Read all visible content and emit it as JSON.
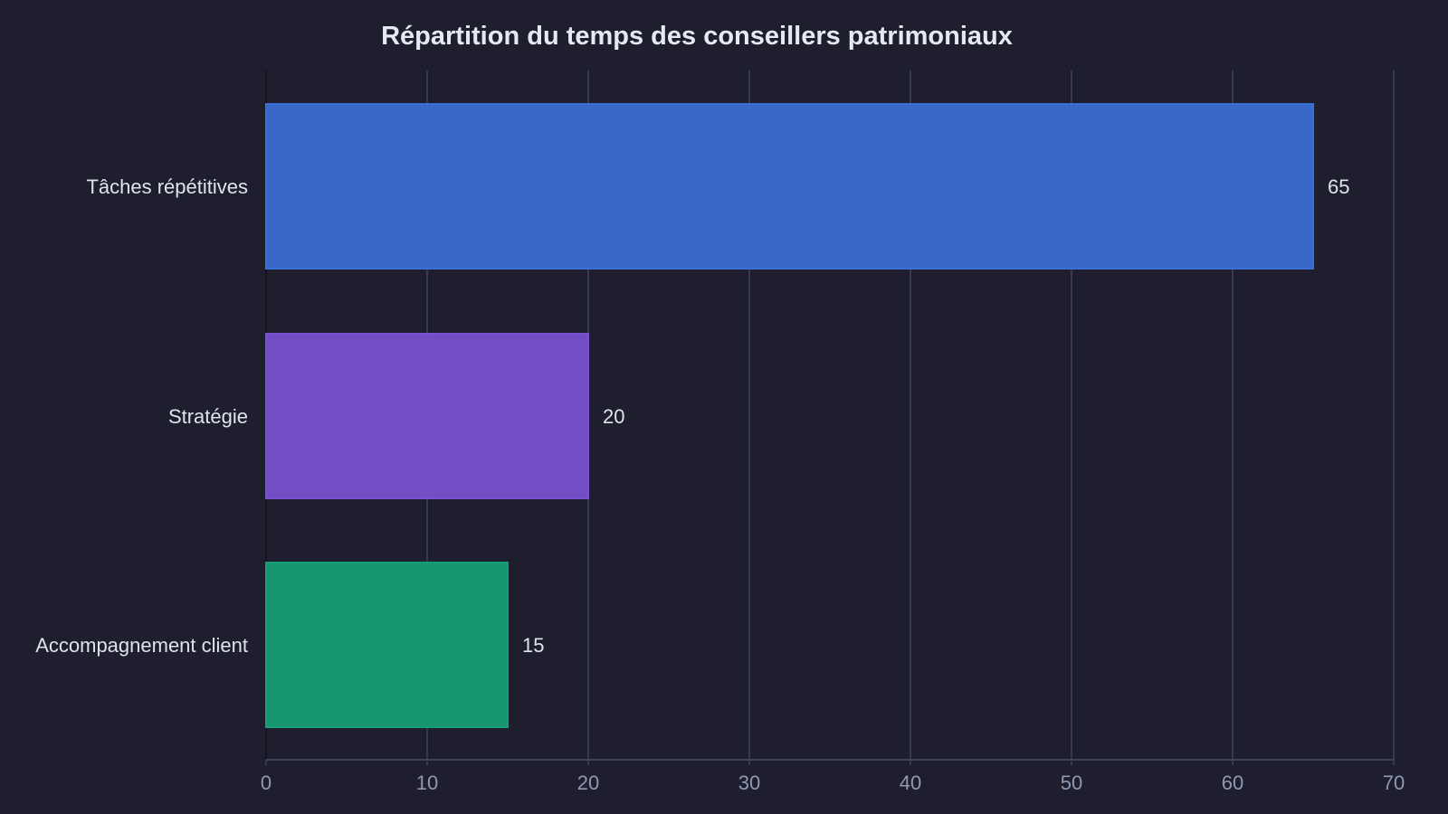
{
  "chart_data": {
    "type": "bar",
    "orientation": "horizontal",
    "title": "Répartition du temps des conseillers patrimoniaux",
    "categories": [
      "Tâches répétitives",
      "Stratégie",
      "Accompagnement client"
    ],
    "values": [
      65,
      20,
      15
    ],
    "value_labels": [
      "65",
      "20",
      "15"
    ],
    "colors": [
      "#3a6fd8",
      "#7a52d1",
      "#17a077"
    ],
    "xlim": [
      0,
      70
    ],
    "xticks": [
      "0",
      "10",
      "20",
      "30",
      "40",
      "50",
      "60",
      "70"
    ],
    "grid": "vertical",
    "legend": "none"
  },
  "theme": {
    "background": "#1e1e2e",
    "grid_color": "#3a4558",
    "axis_color": "#3a4558"
  }
}
